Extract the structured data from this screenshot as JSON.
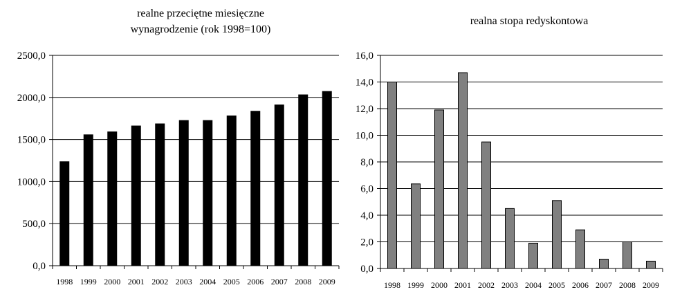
{
  "chart_data": [
    {
      "type": "bar",
      "title": "realne przeciętne miesięczne wynagrodzenie (rok 1998=100)",
      "title_lines": [
        "realne przeciętne miesięczne",
        "wynagrodzenie (rok 1998=100)"
      ],
      "categories": [
        "1998",
        "1999",
        "2000",
        "2001",
        "2002",
        "2003",
        "2004",
        "2005",
        "2006",
        "2007",
        "2008",
        "2009"
      ],
      "values": [
        1240,
        1560,
        1595,
        1665,
        1690,
        1730,
        1730,
        1785,
        1840,
        1915,
        2035,
        2075
      ],
      "yticks": [
        "0,0",
        "500,0",
        "1000,0",
        "1500,0",
        "2000,0",
        "2500,0"
      ],
      "ylim": [
        0,
        2500
      ],
      "grid": true,
      "bar_color": "#000000"
    },
    {
      "type": "bar",
      "title": "realna stopa redyskontowa",
      "title_lines": [
        "realna stopa redyskontowa"
      ],
      "categories": [
        "1998",
        "1999",
        "2000",
        "2001",
        "2002",
        "2003",
        "2004",
        "2005",
        "2006",
        "2007",
        "2008",
        "2009"
      ],
      "values": [
        14.0,
        6.35,
        11.9,
        14.7,
        9.5,
        4.5,
        1.9,
        5.1,
        2.9,
        0.7,
        2.0,
        0.55
      ],
      "yticks": [
        "0,0",
        "2,0",
        "4,0",
        "6,0",
        "8,0",
        "10,0",
        "12,0",
        "14,0",
        "16,0"
      ],
      "ylim": [
        0,
        16
      ],
      "grid": true,
      "bar_color": "#808080"
    }
  ]
}
